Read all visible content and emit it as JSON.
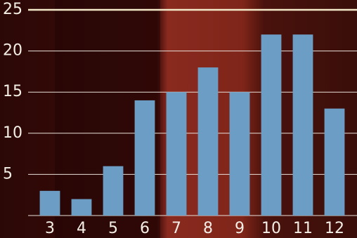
{
  "chart_data": {
    "type": "bar",
    "categories": [
      "3",
      "4",
      "5",
      "6",
      "7",
      "8",
      "9",
      "10",
      "11",
      "12"
    ],
    "values": [
      3,
      2,
      6,
      14,
      15,
      18,
      15,
      22,
      22,
      13
    ],
    "color": "#6b9dc5",
    "ylim": [
      0,
      25
    ],
    "yticks": [
      5,
      10,
      15,
      20,
      25
    ],
    "grid": true
  }
}
